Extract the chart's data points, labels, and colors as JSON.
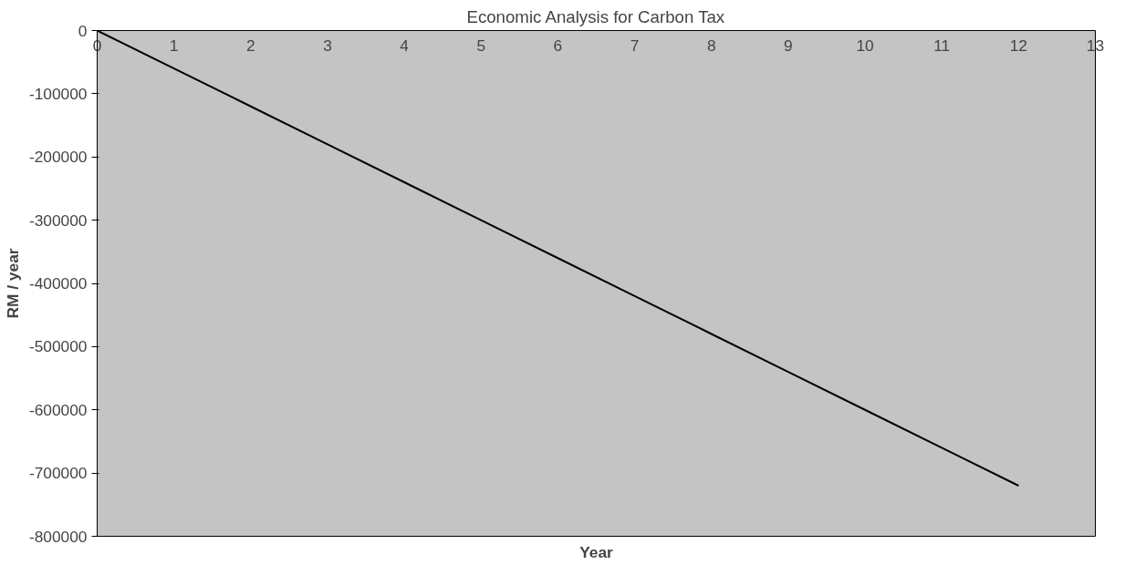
{
  "chart_data": {
    "type": "line",
    "title": "Economic Analysis for Carbon Tax",
    "xlabel": "Year",
    "ylabel": "RM / year",
    "x": [
      0,
      1,
      2,
      3,
      4,
      5,
      6,
      7,
      8,
      9,
      10,
      11,
      12
    ],
    "series": [
      {
        "color": "#000000",
        "values": [
          0,
          -60000,
          -120000,
          -180000,
          -240000,
          -300000,
          -360000,
          -420000,
          -480000,
          -540000,
          -600000,
          -660000,
          -720000
        ]
      }
    ],
    "xlim": [
      0,
      13
    ],
    "xticks": [
      0,
      1,
      2,
      3,
      4,
      5,
      6,
      7,
      8,
      9,
      10,
      11,
      12,
      13
    ],
    "ylim": [
      -800000,
      0
    ],
    "yticks": [
      0,
      -100000,
      -200000,
      -300000,
      -400000,
      -500000,
      -600000,
      -700000,
      -800000
    ],
    "grid": false,
    "marker": "none",
    "line_style": "solid"
  }
}
